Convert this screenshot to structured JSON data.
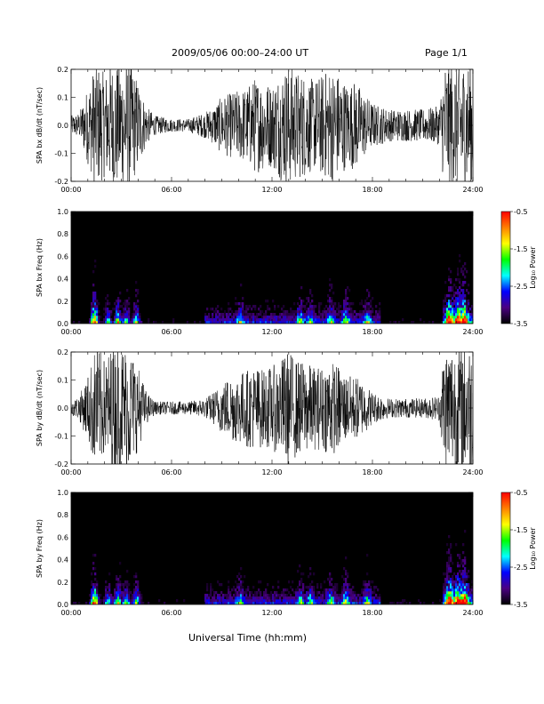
{
  "header": {
    "title": "2009/05/06  00:00–24:00 UT",
    "page": "Page 1/1"
  },
  "footer": {
    "xlabel": "Universal Time (hh:mm)"
  },
  "colorbar": {
    "label": "Log₁₀ Power",
    "ticks": [
      "-0.5",
      "-1.5",
      "-2.5",
      "-3.5"
    ],
    "range": [
      -3.5,
      -0.5
    ],
    "colormap": [
      "#000000",
      "#4b0082",
      "#0000ff",
      "#00ffff",
      "#00ff00",
      "#ffff00",
      "#ff8000",
      "#ff0000"
    ]
  },
  "chart_data": [
    {
      "type": "line",
      "ylabel": "SPA bx dB/dt (nT/sec)",
      "xlim": [
        "00:00",
        "24:00"
      ],
      "ylim": [
        -0.2,
        0.2
      ],
      "xticks": [
        "00:00",
        "06:00",
        "12:00",
        "18:00",
        "24:00"
      ],
      "yticks": [
        "-0.2",
        "-0.1",
        "0.0",
        "0.1",
        "0.2"
      ],
      "envelope_hours": [
        0,
        0.5,
        1,
        1.5,
        2,
        2.5,
        3,
        3.5,
        4,
        4.5,
        5,
        6,
        7,
        8,
        8.5,
        9,
        9.5,
        10,
        10.5,
        11,
        11.5,
        12,
        12.5,
        13,
        13.5,
        14,
        14.5,
        15,
        15.5,
        16,
        16.5,
        17,
        17.5,
        18,
        19,
        20,
        21,
        22,
        22.3,
        22.7,
        23,
        23.5,
        24
      ],
      "envelope_amp": [
        0.03,
        0.04,
        0.12,
        0.2,
        0.16,
        0.2,
        0.2,
        0.2,
        0.14,
        0.06,
        0.03,
        0.02,
        0.02,
        0.04,
        0.06,
        0.09,
        0.1,
        0.11,
        0.12,
        0.15,
        0.14,
        0.13,
        0.17,
        0.19,
        0.17,
        0.16,
        0.14,
        0.16,
        0.18,
        0.16,
        0.13,
        0.14,
        0.1,
        0.07,
        0.05,
        0.05,
        0.05,
        0.06,
        0.2,
        0.2,
        0.2,
        0.2,
        0.2
      ]
    },
    {
      "type": "heatmap",
      "ylabel": "SPA bx Freq (Hz)",
      "xlim": [
        "00:00",
        "24:00"
      ],
      "ylim": [
        0.0,
        1.0
      ],
      "xticks": [
        "00:00",
        "06:00",
        "12:00",
        "18:00",
        "24:00"
      ],
      "yticks": [
        "0.0",
        "0.2",
        "0.4",
        "0.6",
        "0.8",
        "1.0"
      ],
      "zlim": [
        -3.5,
        -0.5
      ],
      "event_hours": [
        1.4,
        2.2,
        2.8,
        3.3,
        3.9,
        10.1,
        13.7,
        14.3,
        15.5,
        16.4,
        17.7,
        22.6,
        23.1,
        23.5
      ],
      "event_strength": [
        1.0,
        0.5,
        0.7,
        0.5,
        0.6,
        0.35,
        0.4,
        0.35,
        0.4,
        0.45,
        0.4,
        0.9,
        0.8,
        0.9
      ]
    },
    {
      "type": "line",
      "ylabel": "SPA by dB/dt (nT/sec)",
      "xlim": [
        "00:00",
        "24:00"
      ],
      "ylim": [
        -0.2,
        0.2
      ],
      "xticks": [
        "00:00",
        "06:00",
        "12:00",
        "18:00",
        "24:00"
      ],
      "yticks": [
        "-0.2",
        "-0.1",
        "0.0",
        "0.1",
        "0.2"
      ],
      "envelope_hours": [
        0,
        0.5,
        1,
        1.5,
        2,
        2.5,
        3,
        3.5,
        4,
        4.5,
        5,
        6,
        7,
        8,
        8.5,
        9,
        9.5,
        10,
        10.5,
        11,
        11.5,
        12,
        12.5,
        13,
        13.5,
        14,
        14.5,
        15,
        15.5,
        16,
        16.5,
        17,
        17.5,
        18,
        19,
        20,
        21,
        22,
        22.3,
        22.7,
        23,
        23.5,
        24
      ],
      "envelope_amp": [
        0.02,
        0.04,
        0.1,
        0.2,
        0.15,
        0.2,
        0.2,
        0.19,
        0.13,
        0.05,
        0.02,
        0.02,
        0.02,
        0.03,
        0.05,
        0.08,
        0.1,
        0.11,
        0.12,
        0.13,
        0.12,
        0.13,
        0.15,
        0.18,
        0.15,
        0.14,
        0.13,
        0.13,
        0.15,
        0.13,
        0.1,
        0.1,
        0.08,
        0.05,
        0.03,
        0.03,
        0.03,
        0.04,
        0.2,
        0.2,
        0.2,
        0.2,
        0.2
      ]
    },
    {
      "type": "heatmap",
      "ylabel": "SPA by Freq (Hz)",
      "xlim": [
        "00:00",
        "24:00"
      ],
      "ylim": [
        0.0,
        1.0
      ],
      "xticks": [
        "00:00",
        "06:00",
        "12:00",
        "18:00",
        "24:00"
      ],
      "yticks": [
        "0.0",
        "0.2",
        "0.4",
        "0.6",
        "0.8",
        "1.0"
      ],
      "zlim": [
        -3.5,
        -0.5
      ],
      "event_hours": [
        1.4,
        2.2,
        2.8,
        3.3,
        3.9,
        10.1,
        13.7,
        14.3,
        15.5,
        16.4,
        17.7,
        22.6,
        23.1,
        23.5
      ],
      "event_strength": [
        1.0,
        0.5,
        0.7,
        0.5,
        0.6,
        0.35,
        0.4,
        0.35,
        0.4,
        0.45,
        0.4,
        0.9,
        0.8,
        0.9
      ]
    }
  ]
}
